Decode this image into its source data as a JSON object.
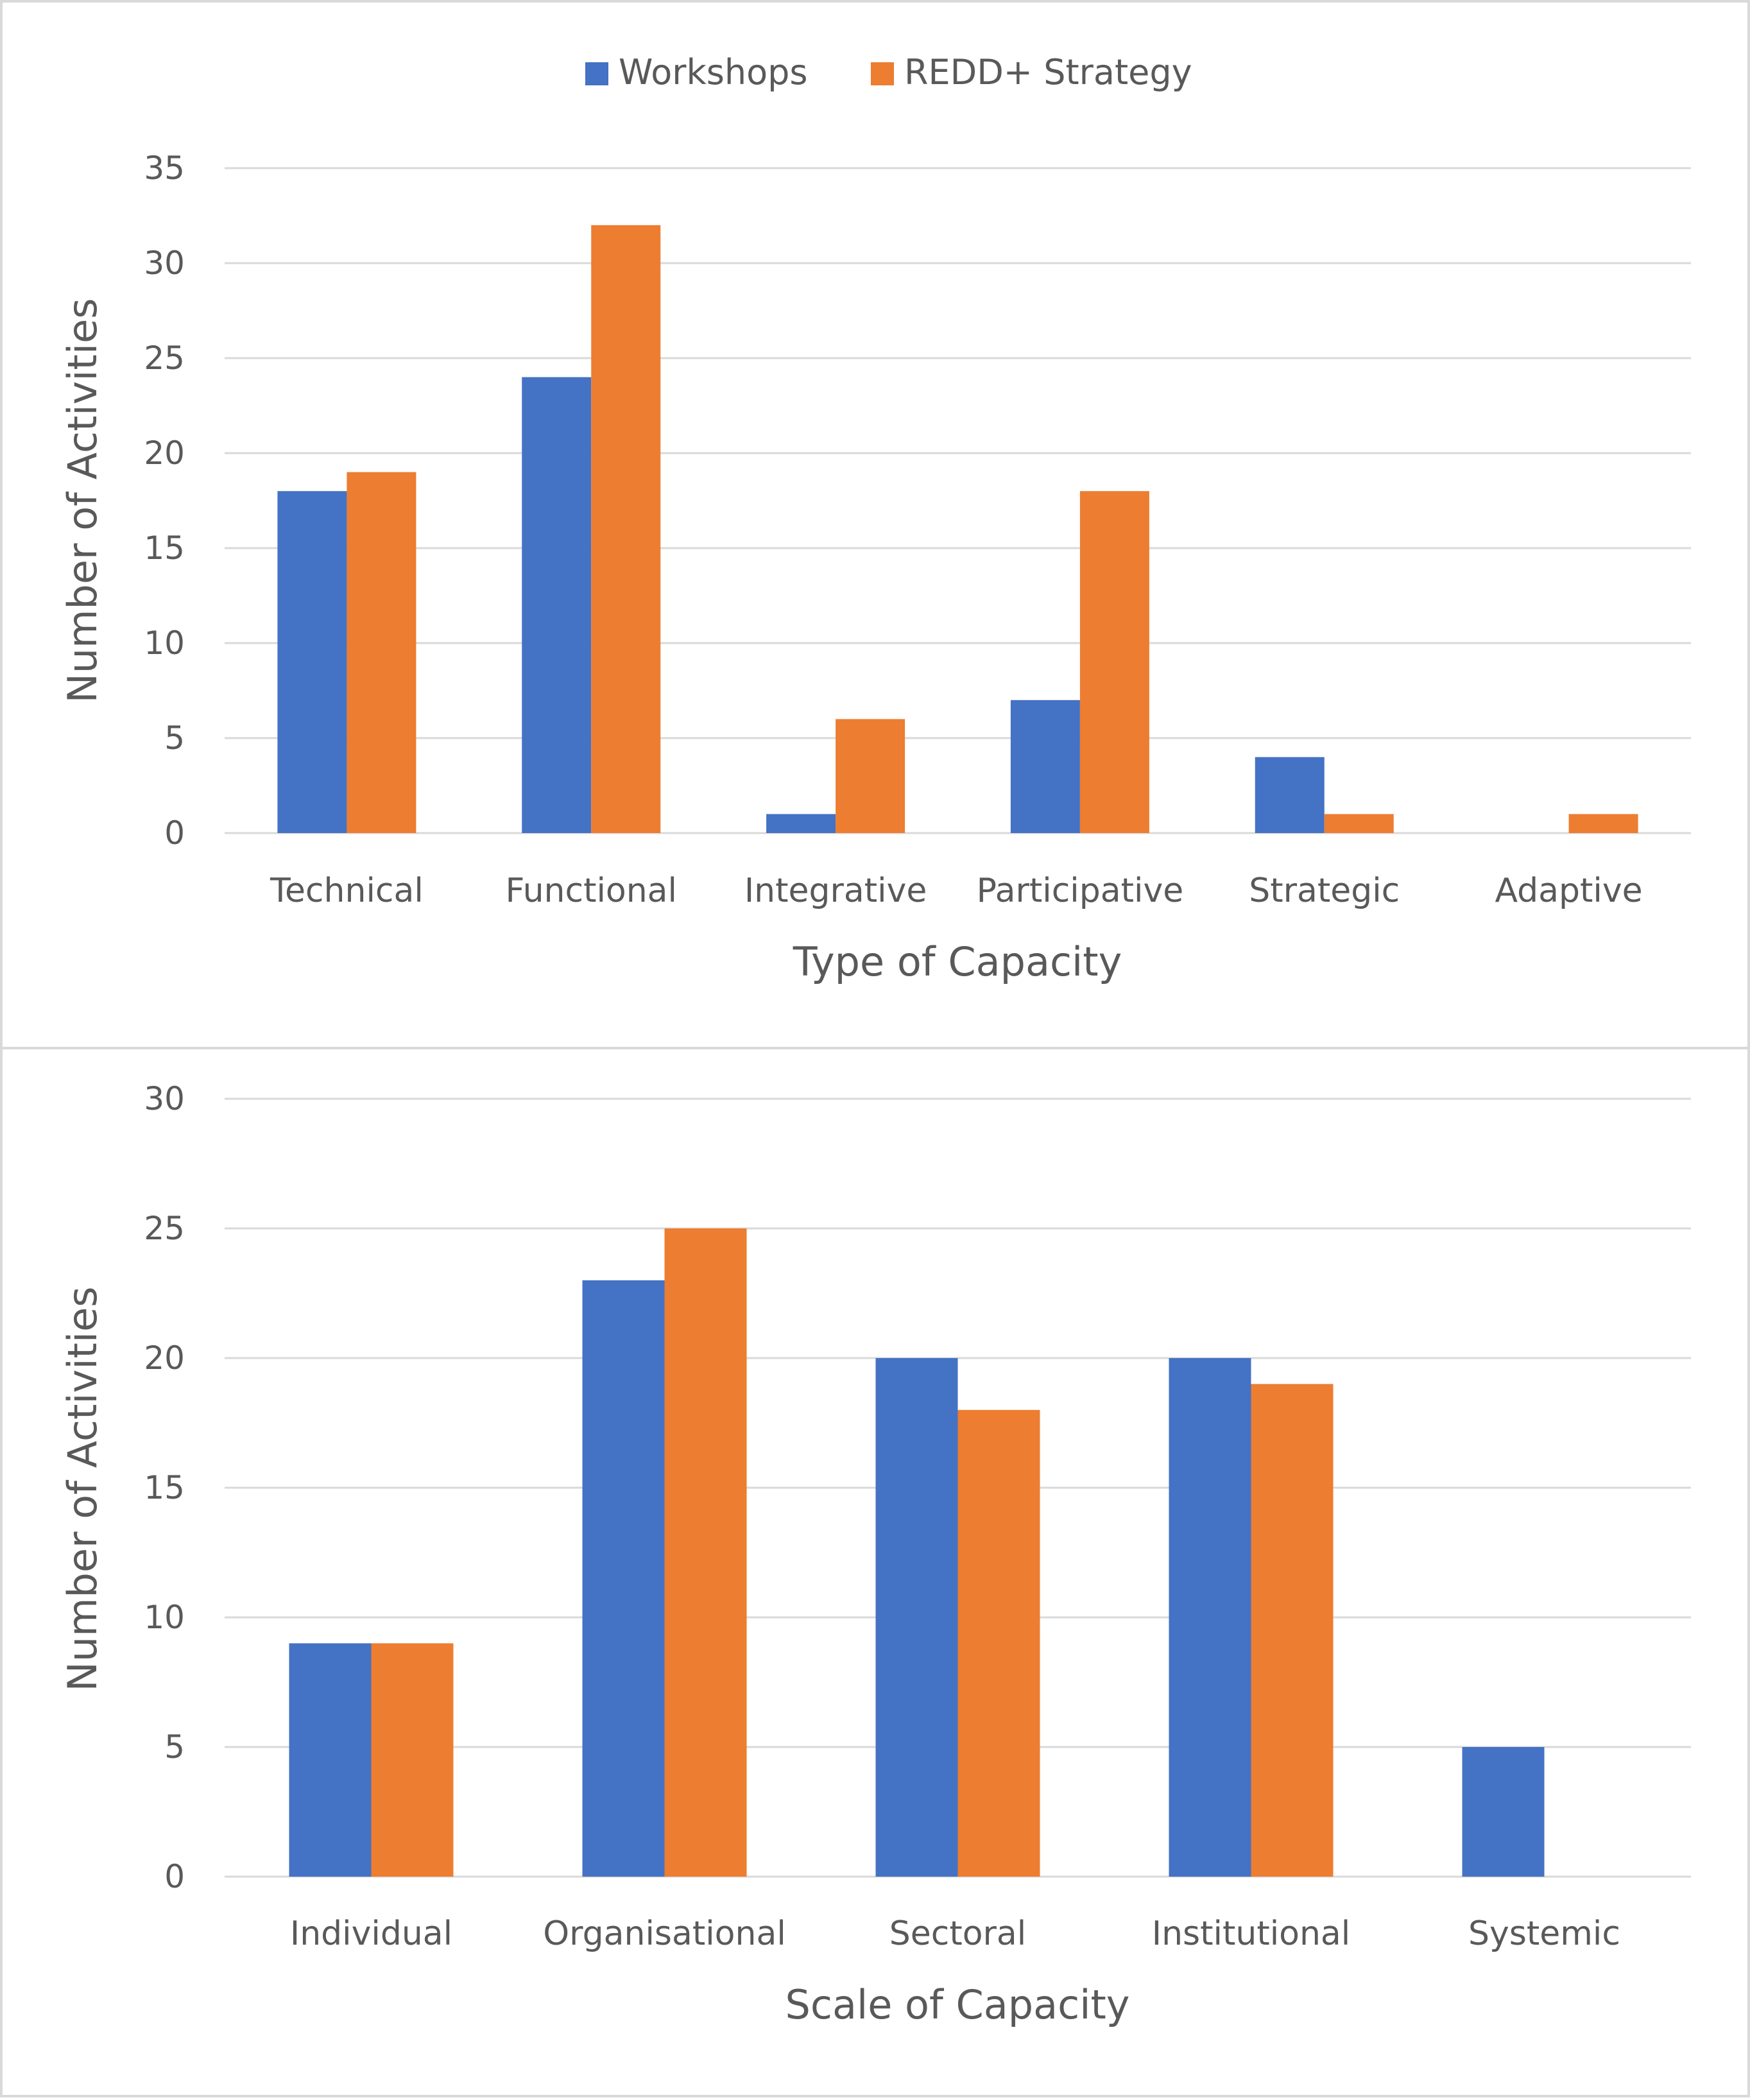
{
  "legend": {
    "series": [
      {
        "name": "Workshops",
        "color": "#4472C4"
      },
      {
        "name": "REDD+ Strategy",
        "color": "#ED7D31"
      }
    ]
  },
  "chart_data": [
    {
      "type": "bar",
      "title": "",
      "xlabel": "Type of Capacity",
      "ylabel": "Number of Activities",
      "ylim": [
        0,
        35
      ],
      "yticks": [
        "0",
        "5",
        "10",
        "15",
        "20",
        "25",
        "30",
        "35"
      ],
      "legend_position": "top-center",
      "grid": true,
      "categories": [
        "Technical",
        "Functional",
        "Integrative",
        "Participative",
        "Strategic",
        "Adaptive"
      ],
      "series": [
        {
          "name": "Workshops",
          "color": "#4472C4",
          "values": [
            18,
            24,
            1,
            7,
            4,
            0
          ]
        },
        {
          "name": "REDD+ Strategy",
          "color": "#ED7D31",
          "values": [
            19,
            32,
            6,
            18,
            1,
            1
          ]
        }
      ]
    },
    {
      "type": "bar",
      "title": "",
      "xlabel": "Scale of Capacity",
      "ylabel": "Number of Activities",
      "ylim": [
        0,
        30
      ],
      "yticks": [
        "0",
        "5",
        "10",
        "15",
        "20",
        "25",
        "30"
      ],
      "legend_position": "none",
      "grid": true,
      "categories": [
        "Individual",
        "Organisational",
        "Sectoral",
        "Institutional",
        "Systemic"
      ],
      "series": [
        {
          "name": "Workshops",
          "color": "#4472C4",
          "values": [
            9,
            23,
            20,
            20,
            5
          ]
        },
        {
          "name": "REDD+ Strategy",
          "color": "#ED7D31",
          "values": [
            9,
            25,
            18,
            19,
            0
          ]
        }
      ]
    }
  ]
}
